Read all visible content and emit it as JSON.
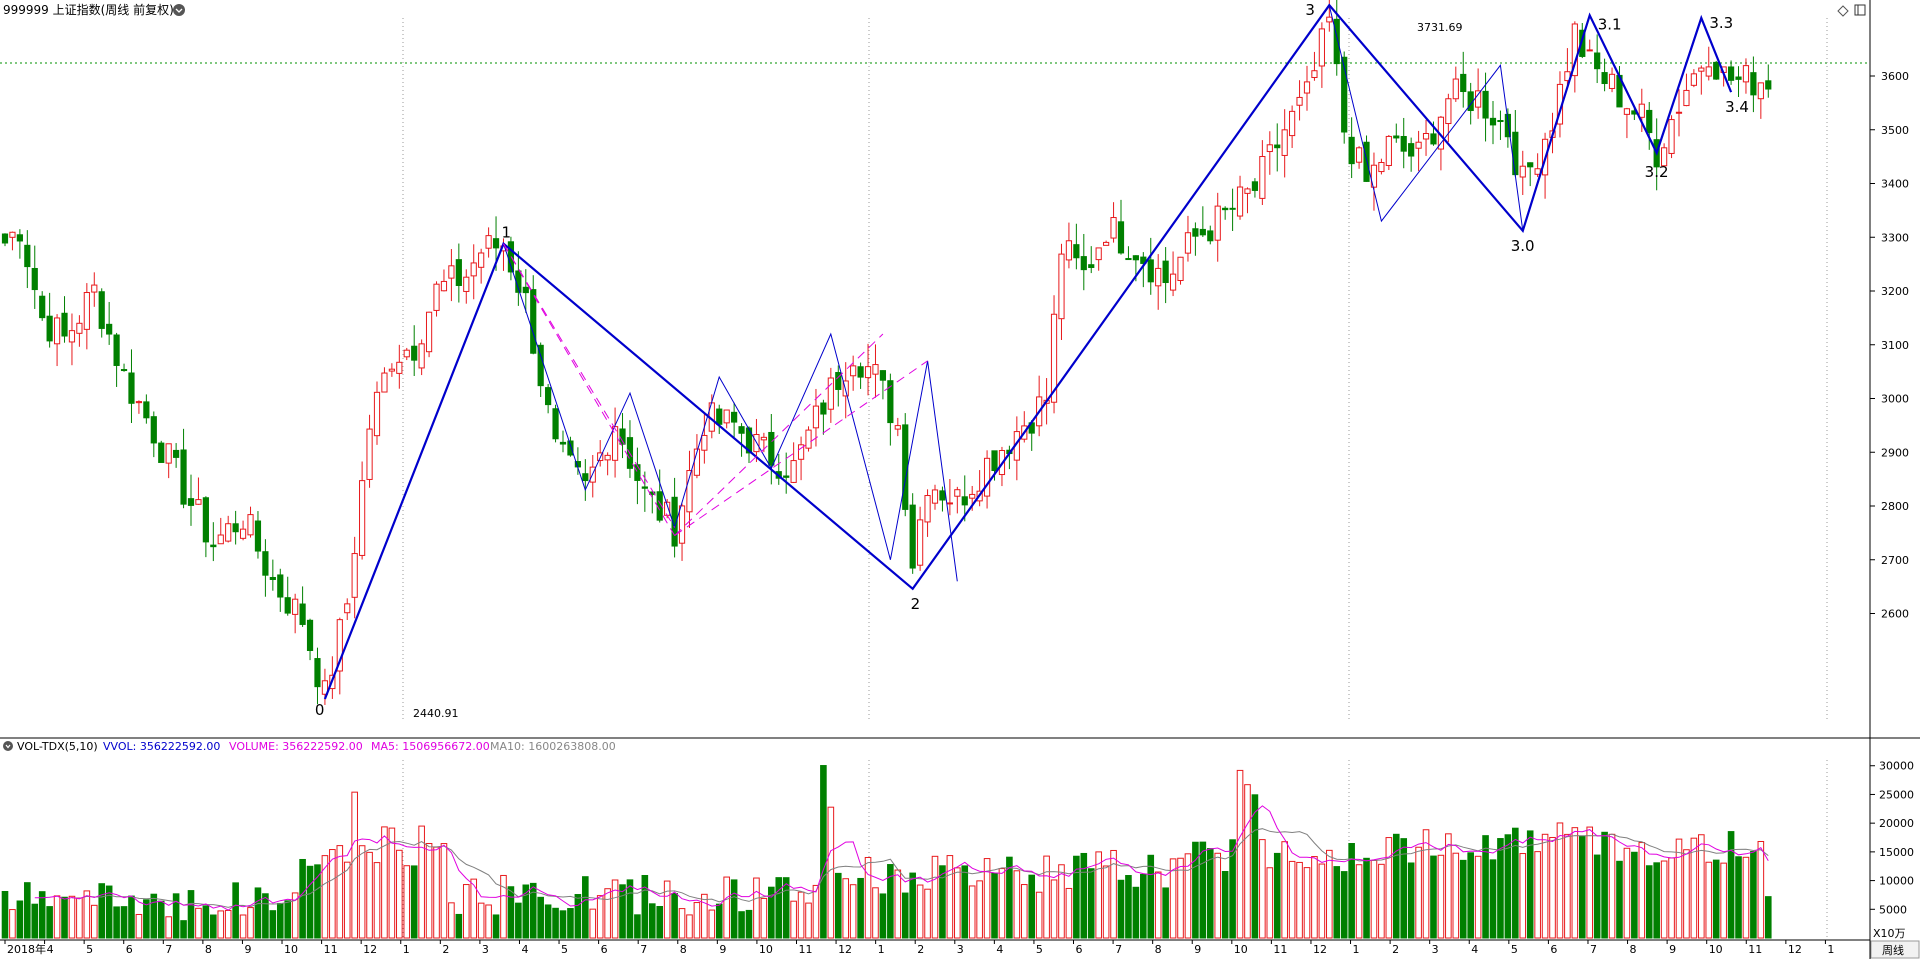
{
  "header": {
    "title": "999999 上证指数(周线 前复权)",
    "dropdown_icon": "chevron-down-icon",
    "right_icons": [
      "diamond-icon",
      "window-icon"
    ]
  },
  "volume_header": {
    "indicator": "VOL-TDX(5,10)",
    "vvol": "VVOL: 356222592.00",
    "volume": "VOLUME: 356222592.00",
    "ma5": "MA5: 1506956672.00",
    "ma10": "MA10: 1600263808.00"
  },
  "price_axis": {
    "ticks": [
      "3600",
      "3500",
      "3400",
      "3300",
      "3200",
      "3100",
      "3000",
      "2900",
      "2800",
      "2700",
      "2600"
    ]
  },
  "volume_axis": {
    "ticks": [
      "30000",
      "25000",
      "20000",
      "15000",
      "10000",
      "5000"
    ],
    "unit": "X10万"
  },
  "time_axis": {
    "labels": [
      "2018年",
      "4",
      "5",
      "6",
      "7",
      "8",
      "9",
      "10",
      "11",
      "12",
      "1",
      "2",
      "3",
      "4",
      "5",
      "6",
      "7",
      "8",
      "9",
      "10",
      "11",
      "12",
      "1",
      "2",
      "3",
      "4",
      "5",
      "6",
      "7",
      "8",
      "9",
      "10",
      "11",
      "12",
      "1",
      "2",
      "3",
      "4",
      "5",
      "6",
      "7",
      "8",
      "9",
      "10",
      "11",
      "12",
      "1"
    ],
    "period": "周线"
  },
  "annotations": {
    "low_price": "2440.91",
    "high_price": "3731.69",
    "wave_labels": [
      "0",
      "1",
      "2",
      "3",
      "3.0",
      "3.1",
      "3.2",
      "3.3",
      "3.4"
    ]
  },
  "colors": {
    "up": "#e8191c",
    "down": "#008000",
    "wave": "#0000cc",
    "ma5": "#e000e0",
    "ma10": "#808080",
    "grid": "#009000"
  },
  "chart_data": {
    "type": "candlestick",
    "period": "weekly",
    "ylim": [
      2440,
      3740
    ],
    "volume_ylim": [
      0,
      31000
    ],
    "wave_points": [
      {
        "label": "0",
        "week": 43,
        "price": 2440.91
      },
      {
        "label": "1",
        "week": 67,
        "price": 3288
      },
      {
        "label": "2",
        "week": 122,
        "price": 2646
      },
      {
        "label": "3",
        "week": 178,
        "price": 3731.69
      },
      {
        "label": "3.0",
        "week": 204,
        "price": 3312
      },
      {
        "label": "3.1",
        "week": 213,
        "price": 3713
      },
      {
        "label": "3.2",
        "week": 222,
        "price": 3457
      },
      {
        "label": "3.3",
        "week": 228,
        "price": 3708
      },
      {
        "label": "3.4",
        "week": 232,
        "price": 3570
      }
    ],
    "anchors": [
      [
        0,
        3290
      ],
      [
        2,
        3320
      ],
      [
        5,
        3150
      ],
      [
        8,
        3110
      ],
      [
        12,
        3200
      ],
      [
        16,
        3040
      ],
      [
        20,
        2940
      ],
      [
        24,
        2830
      ],
      [
        28,
        2730
      ],
      [
        32,
        2780
      ],
      [
        36,
        2660
      ],
      [
        40,
        2590
      ],
      [
        43,
        2445
      ],
      [
        46,
        2620
      ],
      [
        49,
        2950
      ],
      [
        52,
        3080
      ],
      [
        55,
        3100
      ],
      [
        58,
        3200
      ],
      [
        62,
        3230
      ],
      [
        64,
        3275
      ],
      [
        67,
        3288
      ],
      [
        70,
        3180
      ],
      [
        74,
        2900
      ],
      [
        78,
        2830
      ],
      [
        82,
        2960
      ],
      [
        86,
        2820
      ],
      [
        90,
        2760
      ],
      [
        94,
        2960
      ],
      [
        98,
        2950
      ],
      [
        102,
        2900
      ],
      [
        106,
        2870
      ],
      [
        110,
        2990
      ],
      [
        114,
        3090
      ],
      [
        117,
        3040
      ],
      [
        120,
        2950
      ],
      [
        122,
        2700
      ],
      [
        124,
        2850
      ],
      [
        128,
        2810
      ],
      [
        132,
        2880
      ],
      [
        136,
        2940
      ],
      [
        140,
        3000
      ],
      [
        142,
        3280
      ],
      [
        145,
        3230
      ],
      [
        148,
        3320
      ],
      [
        152,
        3280
      ],
      [
        156,
        3220
      ],
      [
        160,
        3300
      ],
      [
        164,
        3340
      ],
      [
        168,
        3390
      ],
      [
        172,
        3500
      ],
      [
        175,
        3560
      ],
      [
        178,
        3700
      ],
      [
        180,
        3500
      ],
      [
        183,
        3400
      ],
      [
        186,
        3470
      ],
      [
        190,
        3450
      ],
      [
        194,
        3560
      ],
      [
        198,
        3560
      ],
      [
        202,
        3500
      ],
      [
        204,
        3400
      ],
      [
        208,
        3520
      ],
      [
        211,
        3680
      ],
      [
        213,
        3620
      ],
      [
        216,
        3580
      ],
      [
        220,
        3520
      ],
      [
        222,
        3460
      ],
      [
        226,
        3580
      ],
      [
        229,
        3650
      ],
      [
        231,
        3600
      ],
      [
        233,
        3590
      ]
    ]
  }
}
